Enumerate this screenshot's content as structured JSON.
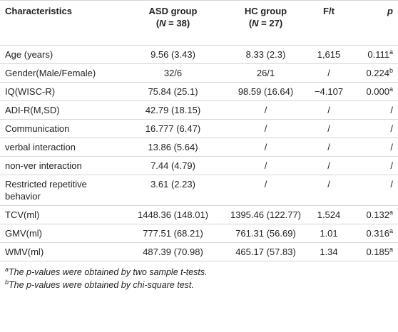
{
  "table": {
    "header": [
      {
        "line1": "Characteristics"
      },
      {
        "line1": "ASD group",
        "open": "(",
        "var": "N",
        "rest": " = 38)"
      },
      {
        "line1": "HC group",
        "open": "(",
        "var": "N",
        "rest": " = 27)"
      },
      {
        "line1": "F/t"
      },
      {
        "line1": "p"
      }
    ],
    "rows": [
      {
        "characteristic": "Age (years)",
        "asd": "9.56 (3.43)",
        "hc": "8.33 (2.3)",
        "ft": "1,615",
        "p": "0.111",
        "p_note": "a"
      },
      {
        "characteristic": "Gender(Male/Female)",
        "asd": "32/6",
        "hc": "26/1",
        "ft": "/",
        "p": "0.224",
        "p_note": "b"
      },
      {
        "characteristic": "IQ(WISC-R)",
        "asd": "75.84 (25.1)",
        "hc": "98.59 (16.64)",
        "ft": "−4.107",
        "p": "0.000",
        "p_note": "a"
      },
      {
        "characteristic": "ADI-R(M,SD)",
        "asd": "42.79 (18.15)",
        "hc": "/",
        "ft": "/",
        "p": "/"
      },
      {
        "characteristic": "Communication",
        "asd": "16.777 (6.47)",
        "hc": "/",
        "ft": "/",
        "p": "/"
      },
      {
        "characteristic": "verbal interaction",
        "asd": "13.86 (5.64)",
        "hc": "/",
        "ft": "/",
        "p": "/"
      },
      {
        "characteristic": "non-ver interaction",
        "asd": "7.44 (4.79)",
        "hc": "/",
        "ft": "/",
        "p": "/"
      },
      {
        "characteristic": "Restricted repetitive behavior",
        "asd": "3.61 (2.23)",
        "hc": "/",
        "ft": "/",
        "p": "/"
      },
      {
        "characteristic": "TCV(ml)",
        "asd": "1448.36 (148.01)",
        "hc": "1395.46 (122.77)",
        "ft": "1.524",
        "p": "0.132",
        "p_note": "a"
      },
      {
        "characteristic": "GMV(ml)",
        "asd": "777.51 (68.21)",
        "hc": "761.31 (56.69)",
        "ft": "1.01",
        "p": "0.316",
        "p_note": "a"
      },
      {
        "characteristic": "WMV(ml)",
        "asd": "487.39 (70.98)",
        "hc": "465.17 (57.83)",
        "ft": "1.34",
        "p": "0.185",
        "p_note": "a"
      }
    ],
    "footnotes": [
      {
        "marker": "a",
        "text": "The p-values were obtained by two sample t-tests."
      },
      {
        "marker": "b",
        "text": "The p-values were obtained by chi-square test."
      }
    ]
  }
}
